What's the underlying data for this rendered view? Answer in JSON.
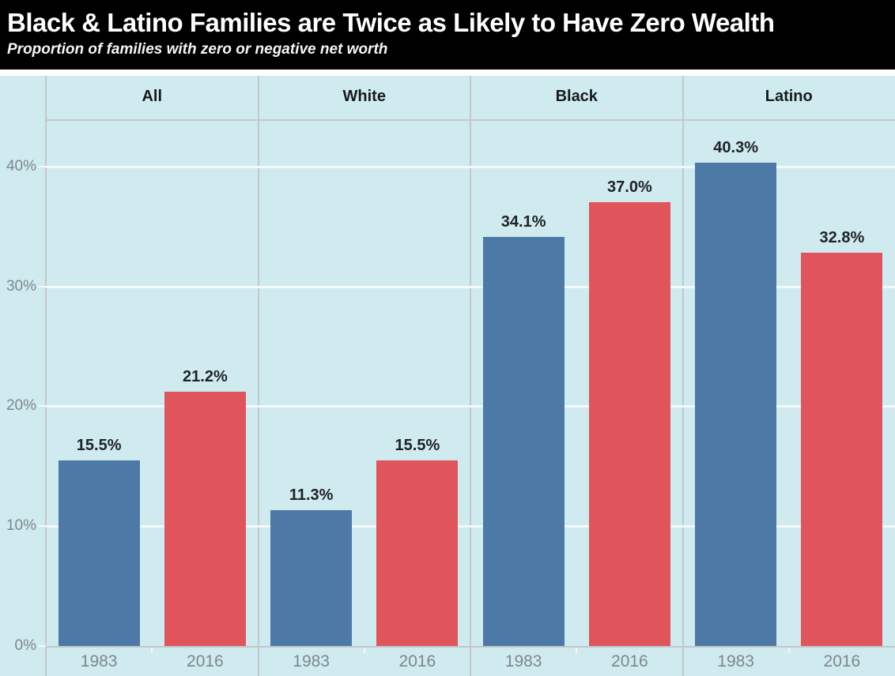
{
  "header": {
    "title": "Black & Latino Families are Twice as Likely to Have Zero Wealth",
    "subtitle": "Proportion of families with zero or negative net worth"
  },
  "chart_data": {
    "type": "bar",
    "title": "Black & Latino Families are Twice as Likely to Have Zero Wealth",
    "subtitle": "Proportion of families with zero or negative net worth",
    "categories": [
      "All",
      "White",
      "Black",
      "Latino"
    ],
    "series": [
      {
        "name": "1983",
        "color": "#4d79a7",
        "values": [
          15.5,
          11.3,
          34.1,
          40.3
        ]
      },
      {
        "name": "2016",
        "color": "#e0555c",
        "values": [
          21.2,
          15.5,
          37.0,
          32.8
        ]
      }
    ],
    "value_label_format": "percent_one_decimal",
    "xlabel": "",
    "ylabel": "",
    "y_ticks": [
      0,
      10,
      20,
      30,
      40
    ],
    "y_tick_labels": [
      "0%",
      "10%",
      "20%",
      "30%",
      "40%"
    ],
    "ylim": [
      0,
      43.8
    ],
    "grid": true,
    "legend_position": "none",
    "panel_layout": "facet-columns-by-category"
  },
  "style": {
    "plot_background": "#cfebf0",
    "header_background": "#000000",
    "header_text": "#ffffff",
    "gridline_color": "#f3f8f9",
    "separator_color": "#c2c7c8",
    "axis_label_color": "#7d868c",
    "panel_header_color": "#17191c",
    "value_label_color": "#202226"
  }
}
